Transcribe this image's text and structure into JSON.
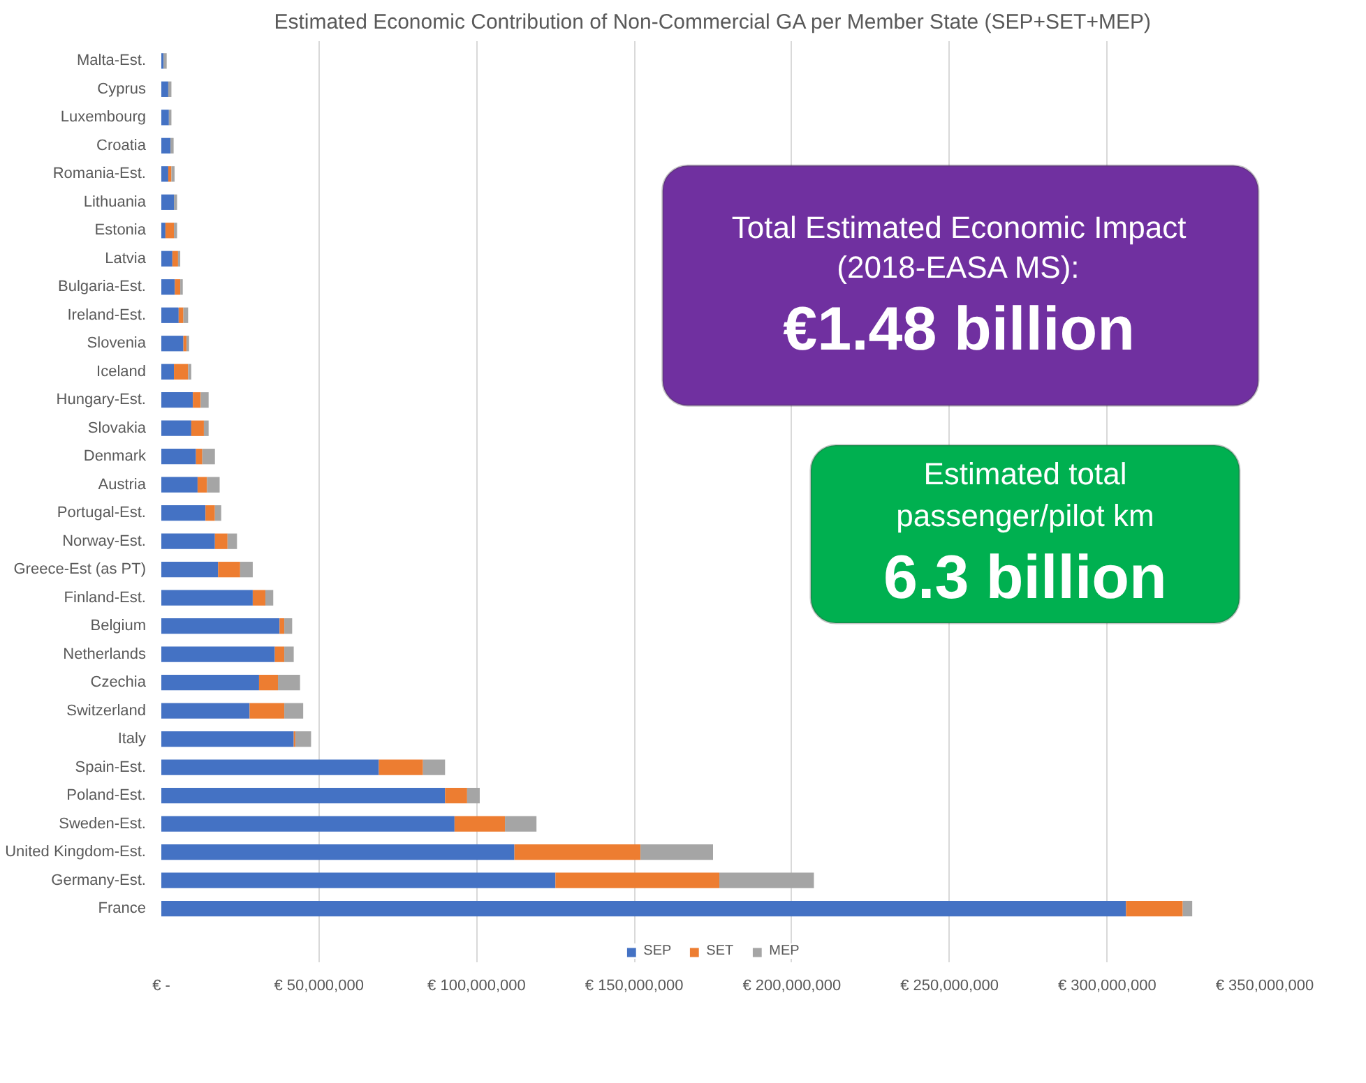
{
  "chart_data": {
    "type": "bar",
    "orientation": "horizontal",
    "stacked": true,
    "title": "Estimated Economic Contribution of Non-Commercial GA per Member State (SEP+SET+MEP)",
    "categories": [
      "Malta-Est.",
      "Cyprus",
      "Luxembourg",
      "Croatia",
      "Romania-Est.",
      "Lithuania",
      "Estonia",
      "Latvia",
      "Bulgaria-Est.",
      "Ireland-Est.",
      "Slovenia",
      "Iceland",
      "Hungary-Est.",
      "Slovakia",
      "Denmark",
      "Austria",
      "Portugal-Est.",
      "Norway-Est.",
      "Greece-Est (as PT)",
      "Finland-Est.",
      "Belgium",
      "Netherlands",
      "Czechia",
      "Switzerland",
      "Italy",
      "Spain-Est.",
      "Poland-Est.",
      "Sweden-Est.",
      "United Kingdom-Est.",
      "Germany-Est.",
      "France"
    ],
    "series": [
      {
        "name": "SEP",
        "color": "#4472c4",
        "values": [
          700000,
          2200000,
          2400000,
          2900000,
          2200000,
          4000000,
          1300000,
          3500000,
          4300000,
          5500000,
          7000000,
          4000000,
          10000000,
          9500000,
          11000000,
          11500000,
          14000000,
          17000000,
          18000000,
          29000000,
          37500000,
          36000000,
          31000000,
          28000000,
          42000000,
          69000000,
          90000000,
          93000000,
          112000000,
          125000000,
          306000000
        ]
      },
      {
        "name": "SET",
        "color": "#ed7d31",
        "values": [
          0,
          0,
          0,
          0,
          1000000,
          0,
          2700000,
          1800000,
          1700000,
          1500000,
          1000000,
          4500000,
          2500000,
          4000000,
          2000000,
          3000000,
          3000000,
          4000000,
          7000000,
          4000000,
          1500000,
          3000000,
          6000000,
          11000000,
          500000,
          14000000,
          7000000,
          16000000,
          40000000,
          52000000,
          18000000
        ]
      },
      {
        "name": "MEP",
        "color": "#a5a5a5",
        "values": [
          1000000,
          1000000,
          800000,
          1000000,
          1000000,
          1000000,
          1000000,
          700000,
          800000,
          1500000,
          800000,
          1000000,
          2500000,
          1500000,
          4000000,
          4000000,
          2000000,
          3000000,
          4000000,
          2500000,
          2500000,
          3000000,
          7000000,
          6000000,
          5000000,
          7000000,
          4000000,
          10000000,
          23000000,
          30000000,
          3000000
        ]
      }
    ],
    "xlim": [
      0,
      350000000
    ],
    "xticks": [
      {
        "value": 0,
        "label": "€ -"
      },
      {
        "value": 50000000,
        "label": "€ 50,000,000"
      },
      {
        "value": 100000000,
        "label": "€ 100,000,000"
      },
      {
        "value": 150000000,
        "label": "€ 150,000,000"
      },
      {
        "value": 200000000,
        "label": "€ 200,000,000"
      },
      {
        "value": 250000000,
        "label": "€ 250,000,000"
      },
      {
        "value": 300000000,
        "label": "€ 300,000,000"
      },
      {
        "value": 350000000,
        "label": "€ 350,000,000"
      }
    ],
    "grid": "x",
    "legend": "bottom",
    "annotations": [
      "Total Estimated Economic Impact",
      "(2018-EASA MS):",
      "€1.48 billion",
      "Estimated total",
      "passenger/pilot km",
      "6.3 billion"
    ]
  }
}
